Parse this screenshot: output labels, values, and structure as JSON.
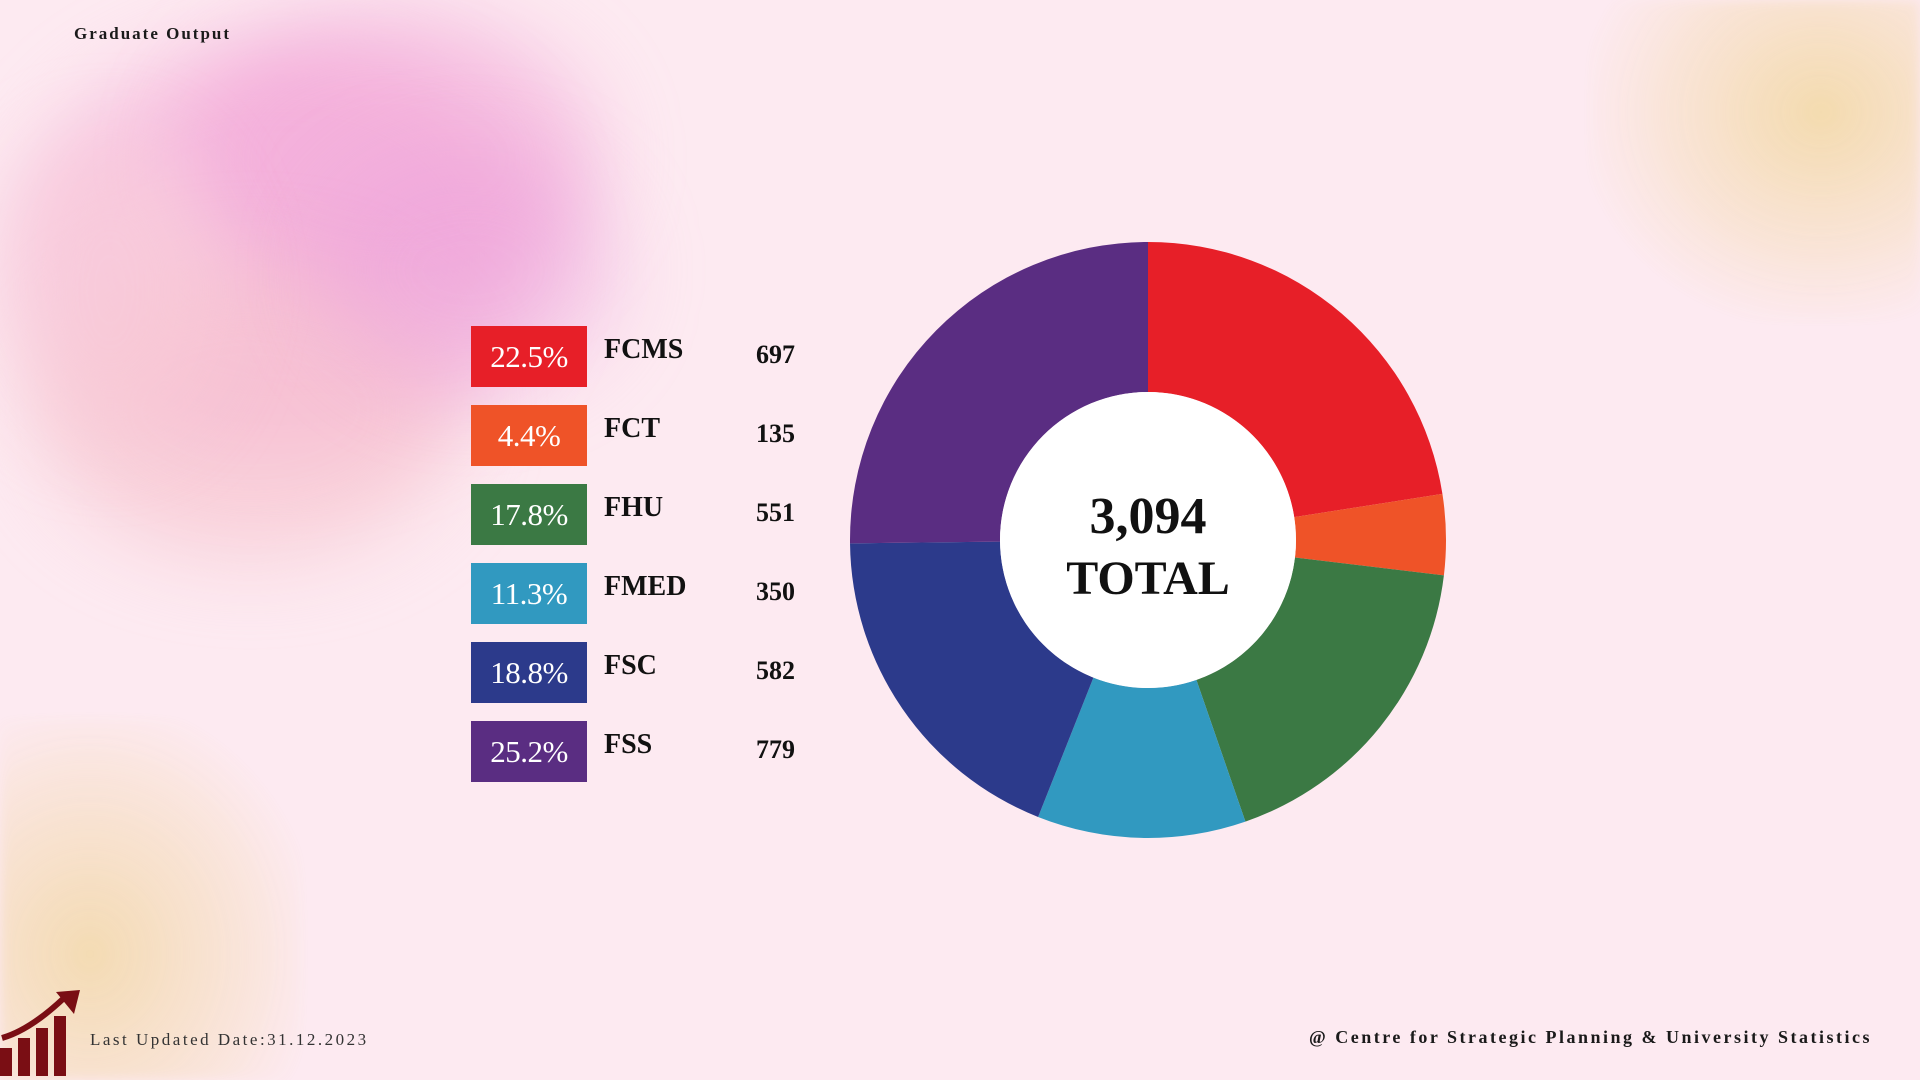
{
  "header": {
    "title": "Graduate Output"
  },
  "footer": {
    "last_updated": "Last Updated Date:31.12.2023",
    "credit": "@ Centre for Strategic Planning & University Statistics"
  },
  "icons": {
    "growth": "bar-chart-growth-arrow-icon"
  },
  "chart_data": {
    "type": "pie",
    "donut": true,
    "center_value": "3,094",
    "center_label": "TOTAL",
    "slices": [
      {
        "label": "FCMS",
        "value": 697,
        "percent": "22.5%",
        "color": "#e71f28"
      },
      {
        "label": "FCT",
        "value": 135,
        "percent": "4.4%",
        "color": "#ef5328"
      },
      {
        "label": "FHU",
        "value": 551,
        "percent": "17.8%",
        "color": "#3b7944"
      },
      {
        "label": "FMED",
        "value": 350,
        "percent": "11.3%",
        "color": "#3199c0"
      },
      {
        "label": "FSC",
        "value": 582,
        "percent": "18.8%",
        "color": "#2c3a8b"
      },
      {
        "label": "FSS",
        "value": 779,
        "percent": "25.2%",
        "color": "#5a2d82"
      }
    ]
  }
}
